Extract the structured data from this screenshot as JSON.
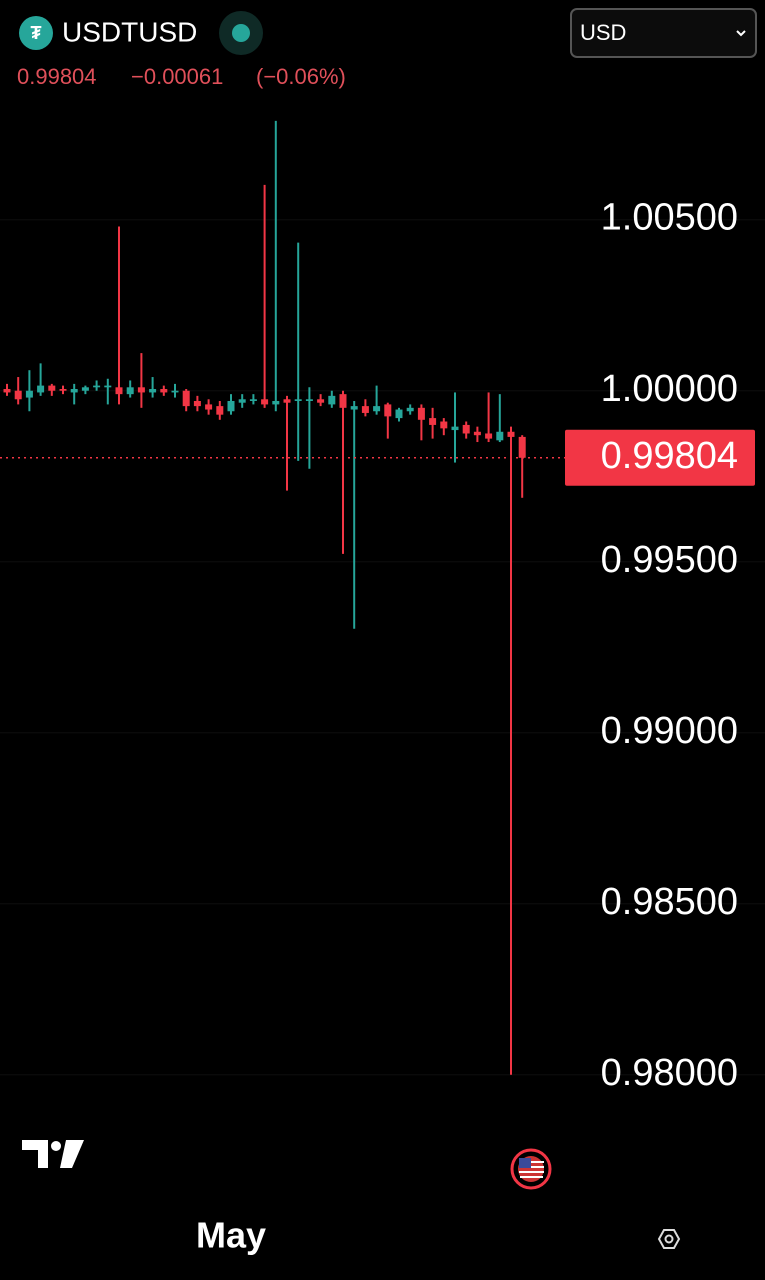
{
  "header": {
    "symbol": "USDTUSD",
    "currency": "USD",
    "last": "0.99804",
    "change": "−0.00061",
    "change_pct": "(−0.06%)"
  },
  "chart_data": {
    "type": "candlestick",
    "up_color": "#26a69a",
    "down_color": "#f23645",
    "ylim": [
      0.979,
      1.0085
    ],
    "yticks": [
      {
        "value": 0.98,
        "label": "0.98000"
      },
      {
        "value": 0.985,
        "label": "0.98500"
      },
      {
        "value": 0.99,
        "label": "0.99000"
      },
      {
        "value": 0.995,
        "label": "0.99500"
      },
      {
        "value": 1.0,
        "label": "1.00000"
      },
      {
        "value": 1.005,
        "label": "1.00500"
      }
    ],
    "grid": true,
    "xticks": [
      {
        "value": 20,
        "label": "May"
      }
    ],
    "last_price": 0.99804,
    "open": [
      1.00005,
      1.0,
      0.9998,
      0.99995,
      1.00015,
      1.00005,
      0.99995,
      1.0,
      1.0001,
      1.0001,
      1.0001,
      0.9999,
      1.0001,
      0.99995,
      1.00005,
      0.99995,
      1.0,
      0.9997,
      0.9996,
      0.99955,
      0.9994,
      0.99965,
      0.9997,
      0.99975,
      0.9996,
      0.99975,
      0.9997,
      0.9997,
      0.99975,
      0.9996,
      0.9999,
      0.99945,
      0.99955,
      0.9994,
      0.9996,
      0.9992,
      0.9994,
      0.9995,
      0.9992,
      0.9991,
      0.99885,
      0.999,
      0.9988,
      0.99875,
      0.99855,
      0.9988,
      0.99865
    ],
    "high": [
      1.0002,
      1.0004,
      1.0006,
      1.0008,
      1.0002,
      1.00015,
      1.0002,
      1.00015,
      1.0003,
      1.00035,
      1.0048,
      1.0003,
      1.0011,
      1.0004,
      1.00015,
      1.0002,
      1.00005,
      0.99985,
      0.99975,
      0.9997,
      0.9999,
      0.9999,
      0.9999,
      1.00602,
      1.00789,
      0.99985,
      1.00433,
      1.0001,
      0.9999,
      1.0,
      1.0,
      0.9997,
      0.99975,
      1.00015,
      0.99965,
      0.9995,
      0.9996,
      0.9996,
      0.9995,
      0.9992,
      0.99995,
      0.9991,
      0.99895,
      0.99995,
      0.9999,
      0.99895,
      0.9987
    ],
    "low": [
      0.99985,
      0.9996,
      0.9994,
      0.99985,
      0.99985,
      0.9999,
      0.9996,
      0.9999,
      1.0,
      0.9996,
      0.9996,
      0.9998,
      0.9995,
      0.9998,
      0.99985,
      0.9998,
      0.9994,
      0.9994,
      0.9993,
      0.99915,
      0.9993,
      0.9995,
      0.9996,
      0.9995,
      0.9994,
      0.99708,
      0.99795,
      0.99772,
      0.99955,
      0.9995,
      0.99523,
      0.99304,
      0.99925,
      0.9993,
      0.9986,
      0.9991,
      0.9993,
      0.99855,
      0.9986,
      0.9987,
      0.9979,
      0.9986,
      0.9985,
      0.9985,
      0.9985,
      0.98,
      0.99687
    ],
    "close": [
      0.99995,
      0.99975,
      1.0,
      1.00015,
      1.0,
      1.0,
      1.00005,
      1.0001,
      1.00015,
      1.00015,
      0.9999,
      1.0001,
      0.99995,
      1.00005,
      0.99995,
      1.0,
      0.99955,
      0.99955,
      0.99945,
      0.9993,
      0.9997,
      0.99975,
      0.99975,
      0.9996,
      0.9997,
      0.99965,
      0.99975,
      0.99975,
      0.99965,
      0.99985,
      0.9995,
      0.99955,
      0.99935,
      0.99955,
      0.99925,
      0.99945,
      0.9995,
      0.99915,
      0.999,
      0.9989,
      0.99895,
      0.99875,
      0.9987,
      0.9986,
      0.9988,
      0.99865,
      0.99804
    ]
  }
}
